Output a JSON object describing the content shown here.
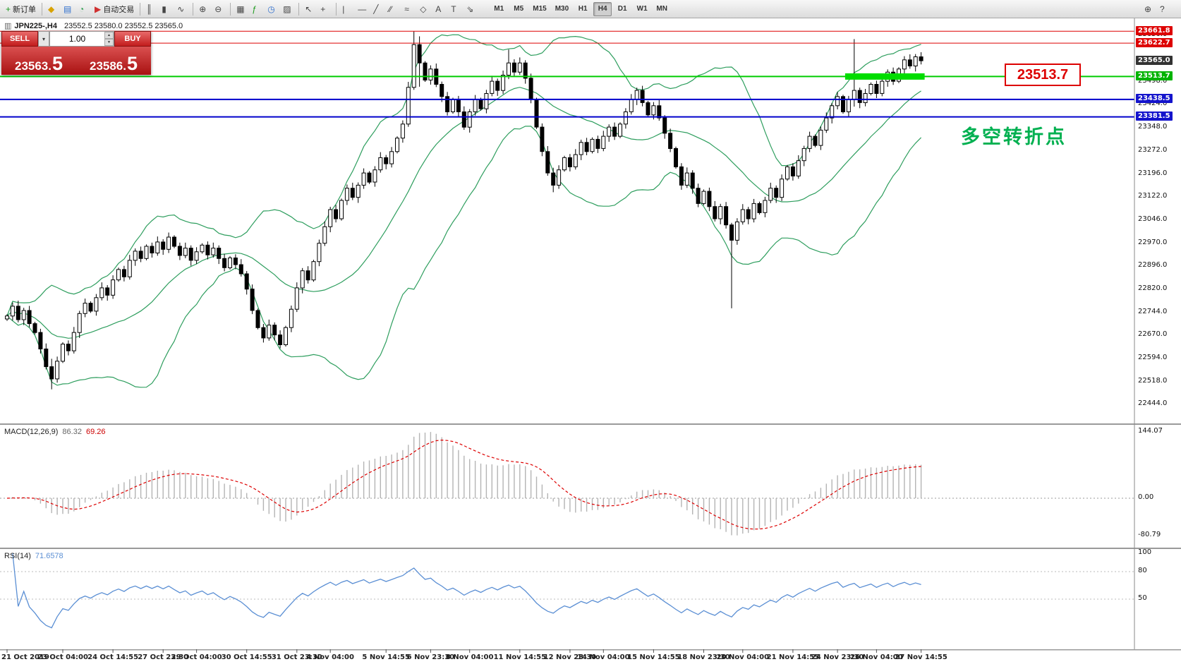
{
  "colors": {
    "bull_candle": "#ffffff",
    "bear_candle": "#000000",
    "candle_outline": "#000000",
    "bollinger": "#2e9e5e",
    "macd_hist": "#b4b4b4",
    "macd_signal": "#dd0000",
    "rsi_line": "#5b8fd4",
    "note_green": "#00b050",
    "callout_red": "#dd0000",
    "sell_buy_red": "#c21d1d"
  },
  "toolbar": {
    "groups": [
      {
        "buttons": [
          {
            "name": "new-order-button",
            "icon": "new-order-icon",
            "glyph": "+",
            "glyph_color": "#1d9a1d",
            "label": "新订单"
          }
        ]
      },
      {
        "buttons": [
          {
            "name": "profiles-button",
            "icon": "profiles-icon",
            "glyph": "◆",
            "glyph_color": "#d8a200"
          },
          {
            "name": "market-watch-button",
            "icon": "market-watch-icon",
            "glyph": "▤",
            "glyph_color": "#2f6fce"
          },
          {
            "name": "data-window-button",
            "icon": "data-window-icon",
            "glyph": "◔",
            "glyph_color": "#2f9e4f"
          },
          {
            "name": "auto-trading-button",
            "icon": "play-icon",
            "glyph": "▶",
            "glyph_color": "#d03030",
            "label": "自动交易"
          }
        ]
      },
      {
        "buttons": [
          {
            "name": "bar-chart-button",
            "icon": "bar-chart-icon",
            "glyph": "║"
          },
          {
            "name": "candlestick-chart-button",
            "icon": "candlestick-icon",
            "glyph": "▮"
          },
          {
            "name": "line-chart-button",
            "icon": "line-chart-icon",
            "glyph": "∿"
          }
        ]
      },
      {
        "buttons": [
          {
            "name": "zoom-in-button",
            "icon": "zoom-in-icon",
            "glyph": "⊕"
          },
          {
            "name": "zoom-out-button",
            "icon": "zoom-out-icon",
            "glyph": "⊖"
          }
        ]
      },
      {
        "buttons": [
          {
            "name": "tile-windows-button",
            "icon": "tile-windows-icon",
            "glyph": "▦"
          },
          {
            "name": "indicators-button",
            "icon": "indicators-icon",
            "glyph": "ƒ",
            "glyph_color": "#1d9a1d"
          },
          {
            "name": "periods-button",
            "icon": "clock-icon",
            "glyph": "◷",
            "glyph_color": "#2f6fce"
          },
          {
            "name": "templates-button",
            "icon": "templates-icon",
            "glyph": "▨"
          }
        ]
      },
      {
        "buttons": [
          {
            "name": "cursor-button",
            "icon": "cursor-icon",
            "glyph": "↖"
          },
          {
            "name": "crosshair-button",
            "icon": "crosshair-icon",
            "glyph": "+"
          }
        ]
      },
      {
        "buttons": [
          {
            "name": "vertical-line-button",
            "icon": "vertical-line-icon",
            "glyph": "|"
          },
          {
            "name": "horizontal-line-button",
            "icon": "horizontal-line-icon",
            "glyph": "—"
          },
          {
            "name": "trendline-button",
            "icon": "trendline-icon",
            "glyph": "╱"
          },
          {
            "name": "channel-button",
            "icon": "channel-icon",
            "glyph": "∕∕"
          },
          {
            "name": "fibonacci-button",
            "icon": "fibonacci-icon",
            "glyph": "≈"
          },
          {
            "name": "shapes-button",
            "icon": "shapes-icon",
            "glyph": "◇"
          },
          {
            "name": "text-button",
            "icon": "text-icon",
            "glyph": "A"
          },
          {
            "name": "label-button",
            "icon": "label-icon",
            "glyph": "T"
          },
          {
            "name": "arrow-button",
            "icon": "arrow-icon",
            "glyph": "⇘"
          }
        ]
      }
    ],
    "timeframes": [
      "M1",
      "M5",
      "M15",
      "M30",
      "H1",
      "H4",
      "D1",
      "W1",
      "MN"
    ],
    "active_timeframe": "H4",
    "right_buttons": [
      {
        "name": "search-button",
        "icon": "magnifier-icon",
        "glyph": "⊕"
      },
      {
        "name": "help-button",
        "icon": "help-cursor-icon",
        "glyph": "?"
      }
    ]
  },
  "chart_header": {
    "icon_glyph": "▥",
    "symbol_period": "JPN225-,H4",
    "ohlc": "23552.5 23580.0 23552.5 23565.0"
  },
  "trade_panel": {
    "sell_label": "SELL",
    "buy_label": "BUY",
    "volume": "1.00",
    "sell_price": {
      "main": "23563.",
      "pip": "5"
    },
    "buy_price": {
      "main": "23586.",
      "pip": "5"
    }
  },
  "annotations": {
    "price_box": "23513.7",
    "note_text": "多空转折点"
  },
  "price_axis": {
    "ticks": [
      "23650.0",
      "23498.0",
      "23424.0",
      "23348.0",
      "23272.0",
      "23196.0",
      "23122.0",
      "23046.0",
      "22970.0",
      "22896.0",
      "22820.0",
      "22744.0",
      "22670.0",
      "22594.0",
      "22518.0",
      "22444.0"
    ],
    "badges": [
      {
        "label": "23661.8",
        "price": 23661.8,
        "bg": "#dd0000",
        "type": "resistance-upper"
      },
      {
        "label": "23622.7",
        "price": 23622.7,
        "bg": "#dd0000",
        "type": "resistance-lower"
      },
      {
        "label": "23565.0",
        "price": 23565.0,
        "bg": "#333333",
        "type": "current-price"
      },
      {
        "label": "23513.7",
        "price": 23513.7,
        "bg": "#00b300",
        "type": "pivot"
      },
      {
        "label": "23438.5",
        "price": 23438.5,
        "bg": "#1414cc",
        "type": "support-upper"
      },
      {
        "label": "23381.5",
        "price": 23381.5,
        "bg": "#1414cc",
        "type": "support-lower"
      }
    ]
  },
  "hlines": [
    {
      "price": 23661.8,
      "color": "#dd0000",
      "width": 1
    },
    {
      "price": 23622.7,
      "color": "#dd0000",
      "width": 1
    },
    {
      "price": 23513.7,
      "color": "#00cc00",
      "width": 2
    },
    {
      "price": 23438.5,
      "color": "#0000cc",
      "width": 2
    },
    {
      "price": 23381.5,
      "color": "#0000cc",
      "width": 2
    }
  ],
  "highlight_segment": {
    "price": 23513.7,
    "bar_start": 151,
    "bar_end": 164,
    "color": "#00dd00",
    "thickness": 9
  },
  "chart_data": {
    "type": "candlestick+indicators",
    "symbol": "JPN225-",
    "timeframe": "H4",
    "ylim": [
      22420,
      23690
    ],
    "first_open": 22720,
    "closes": [
      22730,
      22762,
      22718,
      22748,
      22705,
      22676,
      22622,
      22564,
      22524,
      22582,
      22638,
      22616,
      22676,
      22738,
      22772,
      22746,
      22790,
      22822,
      22798,
      22848,
      22882,
      22858,
      22912,
      22942,
      22918,
      22958,
      22936,
      22972,
      22948,
      22988,
      22958,
      22928,
      22952,
      22912,
      22940,
      22962,
      22930,
      22952,
      22918,
      22888,
      22920,
      22898,
      22868,
      22818,
      22748,
      22692,
      22658,
      22700,
      22668,
      22636,
      22692,
      22752,
      22822,
      22878,
      22848,
      22908,
      22968,
      23022,
      23078,
      23048,
      23108,
      23148,
      23118,
      23158,
      23198,
      23168,
      23208,
      23248,
      23228,
      23268,
      23312,
      23358,
      23478,
      23618,
      23558,
      23502,
      23538,
      23488,
      23448,
      23398,
      23438,
      23398,
      23348,
      23398,
      23438,
      23408,
      23458,
      23498,
      23468,
      23518,
      23558,
      23528,
      23558,
      23508,
      23438,
      23348,
      23268,
      23198,
      23158,
      23208,
      23248,
      23218,
      23258,
      23298,
      23268,
      23308,
      23278,
      23318,
      23348,
      23318,
      23358,
      23398,
      23438,
      23468,
      23428,
      23388,
      23418,
      23378,
      23328,
      23278,
      23218,
      23158,
      23198,
      23148,
      23098,
      23138,
      23088,
      23048,
      23088,
      23028,
      22978,
      23038,
      23078,
      23048,
      23098,
      23068,
      23108,
      23148,
      23118,
      23178,
      23218,
      23188,
      23238,
      23278,
      23318,
      23288,
      23338,
      23378,
      23418,
      23448,
      23398,
      23438,
      23468,
      23428,
      23458,
      23488,
      23458,
      23498,
      23528,
      23498,
      23538,
      23568,
      23548,
      23578,
      23565
    ],
    "wick_overrides": {
      "8": [
        22590,
        22490
      ],
      "73": [
        23661,
        23470
      ],
      "74": [
        23645,
        23480
      ],
      "90": [
        23602,
        23505
      ],
      "98": [
        23215,
        23135
      ],
      "130": [
        23035,
        22755
      ],
      "152": [
        23636,
        23415
      ]
    },
    "bollinger": {
      "period": 20,
      "deviation": 2
    },
    "time_labels": [
      {
        "bar": 0,
        "label": "21 Oct 2019"
      },
      {
        "bar": 10,
        "label": "23 Oct 04:00"
      },
      {
        "bar": 19,
        "label": "24 Oct 14:55"
      },
      {
        "bar": 28,
        "label": "27 Oct 23:30"
      },
      {
        "bar": 34,
        "label": "29 Oct 04:00"
      },
      {
        "bar": 43,
        "label": "30 Oct 14:55"
      },
      {
        "bar": 52,
        "label": "31 Oct 23:30"
      },
      {
        "bar": 58,
        "label": "4 Nov 04:00"
      },
      {
        "bar": 68,
        "label": "5 Nov 14:55"
      },
      {
        "bar": 76,
        "label": "6 Nov 23:30"
      },
      {
        "bar": 83,
        "label": "8 Nov 04:00"
      },
      {
        "bar": 92,
        "label": "11 Nov 14:55"
      },
      {
        "bar": 101,
        "label": "12 Nov 23:30"
      },
      {
        "bar": 107,
        "label": "14 Nov 04:00"
      },
      {
        "bar": 116,
        "label": "15 Nov 14:55"
      },
      {
        "bar": 125,
        "label": "18 Nov 23:30"
      },
      {
        "bar": 132,
        "label": "20 Nov 04:00"
      },
      {
        "bar": 141,
        "label": "21 Nov 14:55"
      },
      {
        "bar": 149,
        "label": "24 Nov 23:30"
      },
      {
        "bar": 156,
        "label": "26 Nov 04:00"
      },
      {
        "bar": 164,
        "label": "27 Nov 14:55"
      }
    ],
    "macd": {
      "label": "MACD(12,26,9)",
      "value": "86.32",
      "signal_value": "69.26",
      "scale_max": "144.07",
      "scale_zero": "0.00",
      "scale_min": "-80.79"
    },
    "rsi": {
      "label": "RSI(14)",
      "value": "71.6578",
      "levels": [
        80,
        50
      ],
      "tick_100": "100",
      "tick_80": "80",
      "tick_50": "50"
    }
  }
}
